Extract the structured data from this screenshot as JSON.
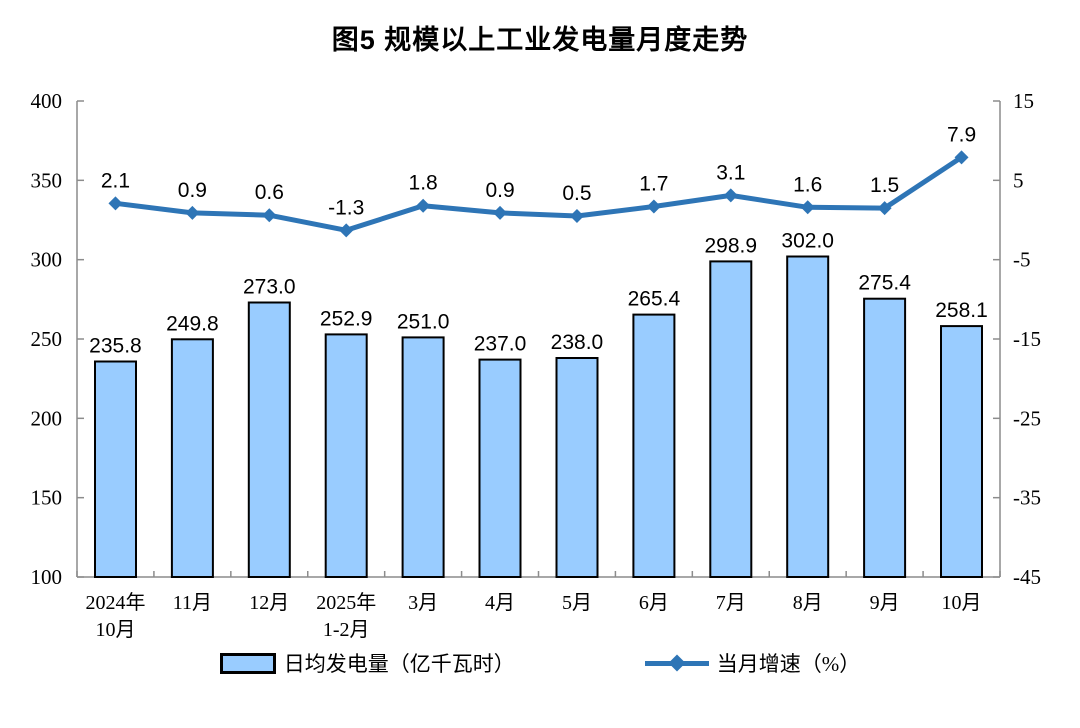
{
  "chart_data": {
    "type": "bar+line",
    "title": "图5  规模以上工业发电量月度走势",
    "categories": [
      [
        "2024年",
        "10月"
      ],
      [
        "11月"
      ],
      [
        "12月"
      ],
      [
        "2025年",
        "1-2月"
      ],
      [
        "3月"
      ],
      [
        "4月"
      ],
      [
        "5月"
      ],
      [
        "6月"
      ],
      [
        "7月"
      ],
      [
        "8月"
      ],
      [
        "9月"
      ],
      [
        "10月"
      ]
    ],
    "series": [
      {
        "name": "日均发电量（亿千瓦时）",
        "type": "bar",
        "axis": "left",
        "values": [
          235.8,
          249.8,
          273.0,
          252.9,
          251.0,
          237.0,
          238.0,
          265.4,
          298.9,
          302.0,
          275.4,
          258.1
        ],
        "fill_color": "#99CCFF",
        "border_color": "#000000"
      },
      {
        "name": "当月增速（%）",
        "type": "line",
        "axis": "right",
        "values": [
          2.1,
          0.9,
          0.6,
          -1.3,
          1.8,
          0.9,
          0.5,
          1.7,
          3.1,
          1.6,
          1.5,
          7.9
        ],
        "color": "#2E75B6",
        "marker": "diamond"
      }
    ],
    "left_axis": {
      "min": 100,
      "max": 400,
      "step": 50,
      "ticks": [
        "400",
        "350",
        "300",
        "250",
        "200",
        "150",
        "100"
      ]
    },
    "right_axis": {
      "min": -45,
      "max": 15,
      "step": 10,
      "ticks": [
        "15",
        "5",
        "-5",
        "-15",
        "-25",
        "-35",
        "-45"
      ]
    },
    "axis_color": "#8C8C8C",
    "text_color": "#000000",
    "grid": false,
    "legend_position": "bottom"
  }
}
